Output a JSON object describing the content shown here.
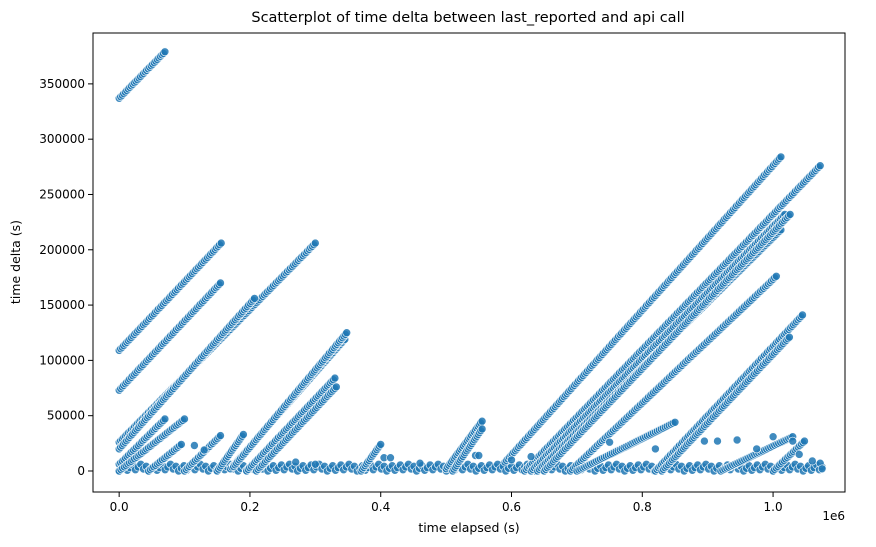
{
  "chart_data": {
    "type": "scatter",
    "title": "Scatterplot of time delta between last_reported and api call",
    "xlabel": "time elapsed (s)",
    "ylabel": "time delta (s)",
    "x_offset_label": "1e6",
    "xlim": [
      -40000,
      1110000
    ],
    "ylim": [
      -19000,
      396000
    ],
    "x_ticks": [
      0,
      200000,
      400000,
      600000,
      800000,
      1000000
    ],
    "x_tick_labels": [
      "0.0",
      "0.2",
      "0.4",
      "0.6",
      "0.8",
      "1.0"
    ],
    "y_ticks": [
      0,
      50000,
      100000,
      150000,
      200000,
      250000,
      300000,
      350000
    ],
    "y_tick_labels": [
      "0",
      "50000",
      "100000",
      "150000",
      "200000",
      "250000",
      "300000",
      "350000"
    ],
    "grid": false,
    "legend": false,
    "colors": {
      "marker_fill": "#1f77b4",
      "marker_edge": "#ffffff"
    },
    "segments": [
      {
        "x": [
          0,
          70000
        ],
        "y": [
          337000,
          379000
        ]
      },
      {
        "x": [
          0,
          156000
        ],
        "y": [
          109000,
          206000
        ]
      },
      {
        "x": [
          0,
          155000
        ],
        "y": [
          73000,
          170000
        ]
      },
      {
        "x": [
          0,
          300000
        ],
        "y": [
          26000,
          206000
        ]
      },
      {
        "x": [
          0,
          207000
        ],
        "y": [
          20000,
          156000
        ]
      },
      {
        "x": [
          0,
          70000
        ],
        "y": [
          6000,
          47000
        ]
      },
      {
        "x": [
          0,
          100000
        ],
        "y": [
          0,
          47000
        ]
      },
      {
        "x": [
          45000,
          95000
        ],
        "y": [
          0,
          24000
        ]
      },
      {
        "x": [
          100000,
          155000
        ],
        "y": [
          0,
          32000
        ]
      },
      {
        "x": [
          150000,
          190000
        ],
        "y": [
          0,
          33000
        ]
      },
      {
        "x": [
          170000,
          345000
        ],
        "y": [
          2000,
          119000
        ]
      },
      {
        "x": [
          175000,
          348000
        ],
        "y": [
          4000,
          125000
        ]
      },
      {
        "x": [
          195000,
          330000
        ],
        "y": [
          0,
          84000
        ]
      },
      {
        "x": [
          210000,
          332000
        ],
        "y": [
          0,
          76000
        ]
      },
      {
        "x": [
          370000,
          400000
        ],
        "y": [
          0,
          24000
        ]
      },
      {
        "x": [
          500000,
          555000
        ],
        "y": [
          2000,
          45000
        ]
      },
      {
        "x": [
          510000,
          555000
        ],
        "y": [
          0,
          38000
        ]
      },
      {
        "x": [
          590000,
          1012000
        ],
        "y": [
          8000,
          284000
        ]
      },
      {
        "x": [
          620000,
          1072000
        ],
        "y": [
          0,
          276000
        ]
      },
      {
        "x": [
          630000,
          1018000
        ],
        "y": [
          0,
          232000
        ]
      },
      {
        "x": [
          640000,
          1012000
        ],
        "y": [
          0,
          218000
        ]
      },
      {
        "x": [
          650000,
          1026000
        ],
        "y": [
          0,
          232000
        ]
      },
      {
        "x": [
          690000,
          1005000
        ],
        "y": [
          0,
          176000
        ]
      },
      {
        "x": [
          700000,
          850000
        ],
        "y": [
          0,
          44000
        ]
      },
      {
        "x": [
          820000,
          1045000
        ],
        "y": [
          0,
          141000
        ]
      },
      {
        "x": [
          830000,
          1025000
        ],
        "y": [
          0,
          121000
        ]
      },
      {
        "x": [
          920000,
          1030000
        ],
        "y": [
          0,
          31000
        ]
      },
      {
        "x": [
          1000000,
          1048000
        ],
        "y": [
          0,
          27000
        ]
      }
    ],
    "isolated_points": [
      {
        "x": 115000,
        "y": 23000
      },
      {
        "x": 130000,
        "y": 19000
      },
      {
        "x": 270000,
        "y": 8000
      },
      {
        "x": 300000,
        "y": 6000
      },
      {
        "x": 405000,
        "y": 12000
      },
      {
        "x": 415000,
        "y": 12000
      },
      {
        "x": 460000,
        "y": 7000
      },
      {
        "x": 545000,
        "y": 14000
      },
      {
        "x": 550000,
        "y": 14000
      },
      {
        "x": 600000,
        "y": 10000
      },
      {
        "x": 630000,
        "y": 13000
      },
      {
        "x": 750000,
        "y": 26000
      },
      {
        "x": 820000,
        "y": 20000
      },
      {
        "x": 895000,
        "y": 27000
      },
      {
        "x": 915000,
        "y": 27000
      },
      {
        "x": 945000,
        "y": 28000
      },
      {
        "x": 975000,
        "y": 20000
      },
      {
        "x": 1000000,
        "y": 31000
      },
      {
        "x": 1030000,
        "y": 27000
      },
      {
        "x": 1040000,
        "y": 15000
      },
      {
        "x": 1060000,
        "y": 9000
      },
      {
        "x": 1072000,
        "y": 7000
      },
      {
        "x": 1075000,
        "y": 2000
      }
    ],
    "baseline_band": {
      "x": [
        0,
        1075000
      ],
      "y": [
        0,
        6000
      ]
    }
  }
}
